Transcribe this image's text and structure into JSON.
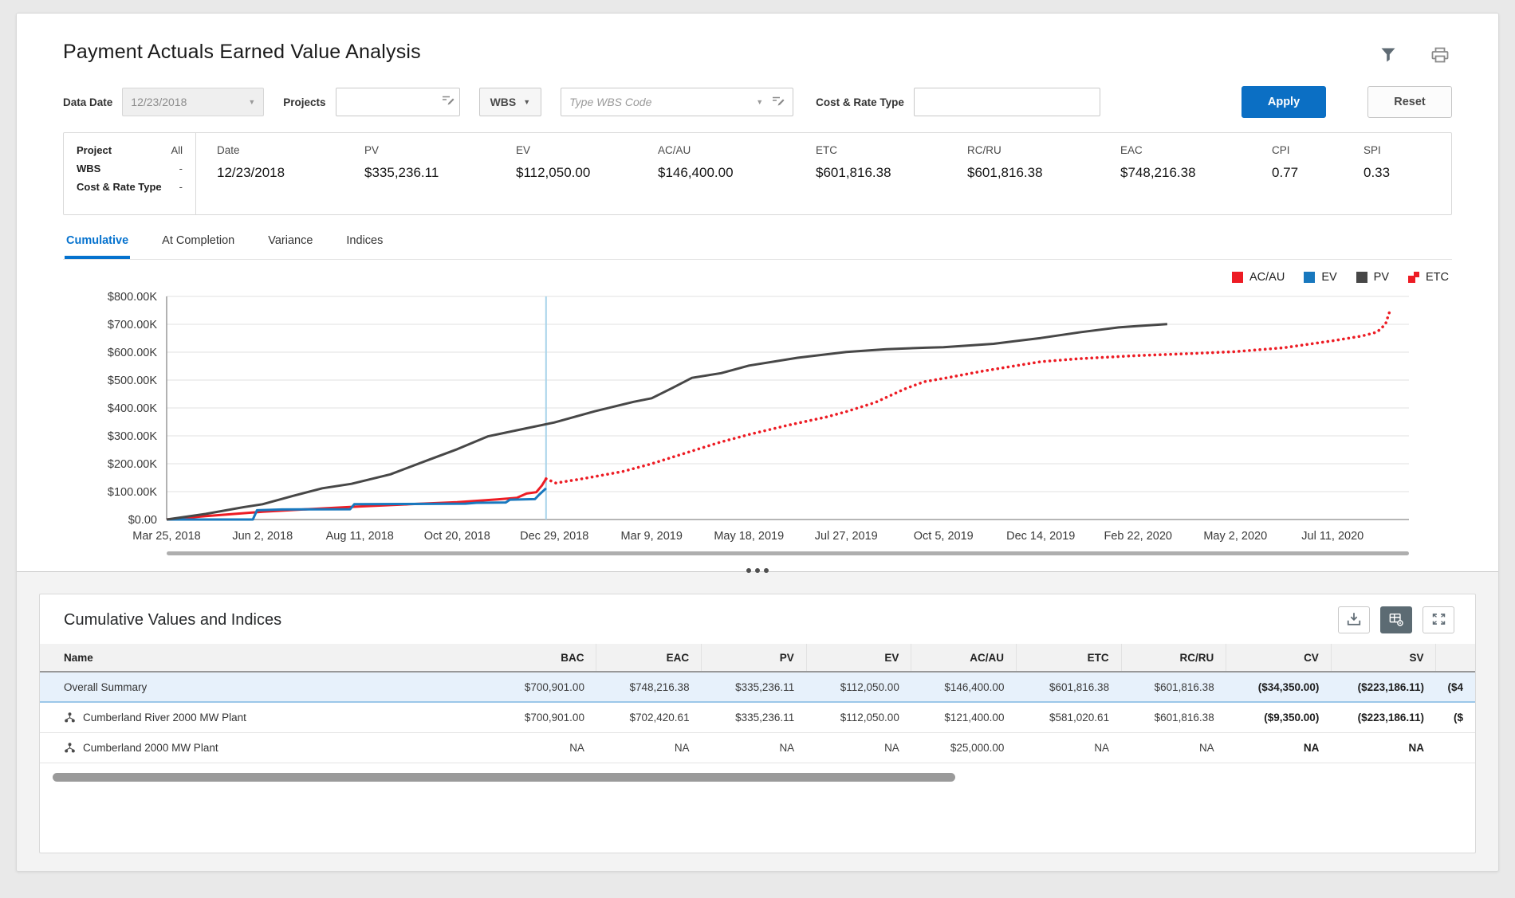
{
  "header": {
    "title": "Payment Actuals Earned Value Analysis"
  },
  "icons": {
    "caret_down": "▼",
    "filter": "funnel-icon",
    "print": "printer-icon",
    "picker": "picker-icon",
    "export": "download-icon",
    "grid_settings": "table-settings-icon",
    "expand": "expand-icon",
    "splitter": "drag-dots"
  },
  "filters": {
    "data_date": {
      "label": "Data Date",
      "value": "12/23/2018"
    },
    "projects": {
      "label": "Projects",
      "value": ""
    },
    "wbs": {
      "button_label": "WBS",
      "placeholder": "Type WBS Code"
    },
    "cost_rate_type": {
      "label": "Cost & Rate Type",
      "value": ""
    },
    "apply_label": "Apply",
    "reset_label": "Reset"
  },
  "summary": {
    "left": [
      {
        "label": "Project",
        "value": "All"
      },
      {
        "label": "WBS",
        "value": "-"
      },
      {
        "label": "Cost & Rate Type",
        "value": "-"
      }
    ],
    "metrics": [
      {
        "label": "Date",
        "value": "12/23/2018"
      },
      {
        "label": "PV",
        "value": "$335,236.11"
      },
      {
        "label": "EV",
        "value": "$112,050.00"
      },
      {
        "label": "AC/AU",
        "value": "$146,400.00"
      },
      {
        "label": "ETC",
        "value": "$601,816.38"
      },
      {
        "label": "RC/RU",
        "value": "$601,816.38"
      },
      {
        "label": "EAC",
        "value": "$748,216.38"
      },
      {
        "label": "CPI",
        "value": "0.77"
      },
      {
        "label": "SPI",
        "value": "0.33"
      }
    ]
  },
  "tabs": [
    {
      "label": "Cumulative",
      "active": true
    },
    {
      "label": "At Completion",
      "active": false
    },
    {
      "label": "Variance",
      "active": false
    },
    {
      "label": "Indices",
      "active": false
    }
  ],
  "chart_data": {
    "type": "line",
    "title": "Cumulative earned value curves",
    "units": "USD thousands",
    "ylim": [
      0,
      800
    ],
    "yticks": [
      "$800.00K",
      "$700.00K",
      "$600.00K",
      "$500.00K",
      "$400.00K",
      "$300.00K",
      "$200.00K",
      "$100.00K",
      "$0.00"
    ],
    "x_tick_labels": [
      "Mar 25, 2018",
      "Jun 2, 2018",
      "Aug 11, 2018",
      "Oct 20, 2018",
      "Dec 29, 2018",
      "Mar 9, 2019",
      "May 18, 2019",
      "Jul 27, 2019",
      "Oct 5, 2019",
      "Dec 14, 2019",
      "Feb 22, 2020",
      "May 2, 2020",
      "Jul 11, 2020"
    ],
    "data_date_marker": "Dec 23, 2018",
    "grid": true,
    "legend_position": "top-right",
    "series": [
      {
        "name": "AC/AU",
        "color": "#ed1c24",
        "style": "solid",
        "points": [
          [
            "Mar 25, 2018",
            0
          ],
          [
            "Apr 22, 2018",
            12
          ],
          [
            "Jun 2, 2018",
            28
          ],
          [
            "Jul 8, 2018",
            38
          ],
          [
            "Aug 11, 2018",
            47
          ],
          [
            "Sep 16, 2018",
            55
          ],
          [
            "Oct 20, 2018",
            62
          ],
          [
            "Nov 18, 2018",
            72
          ],
          [
            "Dec 2, 2018",
            78
          ],
          [
            "Dec 9, 2018",
            93
          ],
          [
            "Dec 16, 2018",
            98
          ],
          [
            "Dec 20, 2018",
            122
          ],
          [
            "Dec 23, 2018",
            146
          ]
        ]
      },
      {
        "name": "EV",
        "color": "#1878be",
        "style": "solid",
        "points": [
          [
            "Mar 25, 2018",
            0
          ],
          [
            "May 26, 2018",
            0
          ],
          [
            "May 29, 2018",
            33
          ],
          [
            "Jun 16, 2018",
            36
          ],
          [
            "Aug 4, 2018",
            37
          ],
          [
            "Aug 7, 2018",
            55
          ],
          [
            "Oct 26, 2018",
            57
          ],
          [
            "Nov 3, 2018",
            60
          ],
          [
            "Nov 24, 2018",
            61
          ],
          [
            "Nov 27, 2018",
            71
          ],
          [
            "Dec 15, 2018",
            73
          ],
          [
            "Dec 18, 2018",
            89
          ],
          [
            "Dec 23, 2018",
            112
          ]
        ]
      },
      {
        "name": "PV",
        "color": "#474747",
        "style": "solid",
        "points": [
          [
            "Mar 25, 2018",
            0
          ],
          [
            "Apr 22, 2018",
            20
          ],
          [
            "May 20, 2018",
            45
          ],
          [
            "Jun 2, 2018",
            55
          ],
          [
            "Jun 24, 2018",
            85
          ],
          [
            "Jul 15, 2018",
            112
          ],
          [
            "Aug 5, 2018",
            128
          ],
          [
            "Sep 2, 2018",
            162
          ],
          [
            "Sep 30, 2018",
            215
          ],
          [
            "Oct 20, 2018",
            252
          ],
          [
            "Nov 11, 2018",
            298
          ],
          [
            "Dec 2, 2018",
            320
          ],
          [
            "Dec 29, 2018",
            348
          ],
          [
            "Jan 27, 2019",
            388
          ],
          [
            "Feb 24, 2019",
            422
          ],
          [
            "Mar 9, 2019",
            435
          ],
          [
            "Mar 24, 2019",
            472
          ],
          [
            "Apr 7, 2019",
            508
          ],
          [
            "Apr 28, 2019",
            525
          ],
          [
            "May 18, 2019",
            552
          ],
          [
            "Jun 22, 2019",
            580
          ],
          [
            "Jul 27, 2019",
            601
          ],
          [
            "Aug 25, 2019",
            611
          ],
          [
            "Sep 22, 2019",
            616
          ],
          [
            "Oct 5, 2019",
            618
          ],
          [
            "Nov 10, 2019",
            630
          ],
          [
            "Dec 14, 2019",
            651
          ],
          [
            "Jan 12, 2020",
            672
          ],
          [
            "Feb 8, 2020",
            689
          ],
          [
            "Feb 22, 2020",
            694
          ],
          [
            "Mar 14, 2020",
            701
          ]
        ]
      },
      {
        "name": "ETC",
        "color": "#ed1c24",
        "style": "dotted",
        "points": [
          [
            "Dec 23, 2018",
            146
          ],
          [
            "Dec 30, 2018",
            131
          ],
          [
            "Jan 19, 2019",
            147
          ],
          [
            "Feb 16, 2019",
            172
          ],
          [
            "Mar 9, 2019",
            200
          ],
          [
            "Mar 30, 2019",
            233
          ],
          [
            "Apr 27, 2019",
            277
          ],
          [
            "May 18, 2019",
            305
          ],
          [
            "Jun 15, 2019",
            338
          ],
          [
            "Jul 13, 2019",
            368
          ],
          [
            "Jul 27, 2019",
            387
          ],
          [
            "Aug 17, 2019",
            420
          ],
          [
            "Sep 7, 2019",
            468
          ],
          [
            "Sep 21, 2019",
            494
          ],
          [
            "Oct 5, 2019",
            506
          ],
          [
            "Nov 2, 2019",
            532
          ],
          [
            "Dec 14, 2019",
            566
          ],
          [
            "Jan 11, 2020",
            577
          ],
          [
            "Feb 22, 2020",
            588
          ],
          [
            "Apr 4, 2020",
            596
          ],
          [
            "May 2, 2020",
            602
          ],
          [
            "Jun 6, 2020",
            616
          ],
          [
            "Jul 11, 2020",
            641
          ],
          [
            "Aug 1, 2020",
            658
          ],
          [
            "Aug 12, 2020",
            672
          ],
          [
            "Aug 18, 2020",
            700
          ],
          [
            "Aug 21, 2020",
            745
          ]
        ]
      }
    ]
  },
  "table": {
    "title": "Cumulative Values and Indices",
    "columns": [
      "Name",
      "BAC",
      "EAC",
      "PV",
      "EV",
      "AC/AU",
      "ETC",
      "RC/RU",
      "CV",
      "SV",
      ""
    ],
    "rows": [
      {
        "name": "Overall Summary",
        "selected": true,
        "has_icon": false,
        "cells": [
          "$700,901.00",
          "$748,216.38",
          "$335,236.11",
          "$112,050.00",
          "$146,400.00",
          "$601,816.38",
          "$601,816.38",
          "($34,350.00)",
          "($223,186.11)",
          "($4"
        ]
      },
      {
        "name": "Cumberland River 2000 MW Plant",
        "selected": false,
        "has_icon": true,
        "cells": [
          "$700,901.00",
          "$702,420.61",
          "$335,236.11",
          "$112,050.00",
          "$121,400.00",
          "$581,020.61",
          "$601,816.38",
          "($9,350.00)",
          "($223,186.11)",
          "($"
        ]
      },
      {
        "name": "Cumberland 2000 MW Plant",
        "selected": false,
        "has_icon": true,
        "cells": [
          "NA",
          "NA",
          "NA",
          "NA",
          "$25,000.00",
          "NA",
          "NA",
          "NA",
          "NA",
          ""
        ]
      }
    ]
  },
  "colors": {
    "accent_blue": "#0572ce",
    "apply_button": "#0b6fc4",
    "acau_red": "#ed1c24",
    "ev_blue": "#1878be",
    "pv_gray": "#474747",
    "data_date_line": "#a8d4ea",
    "selected_row_bg": "#e7f1fb"
  }
}
